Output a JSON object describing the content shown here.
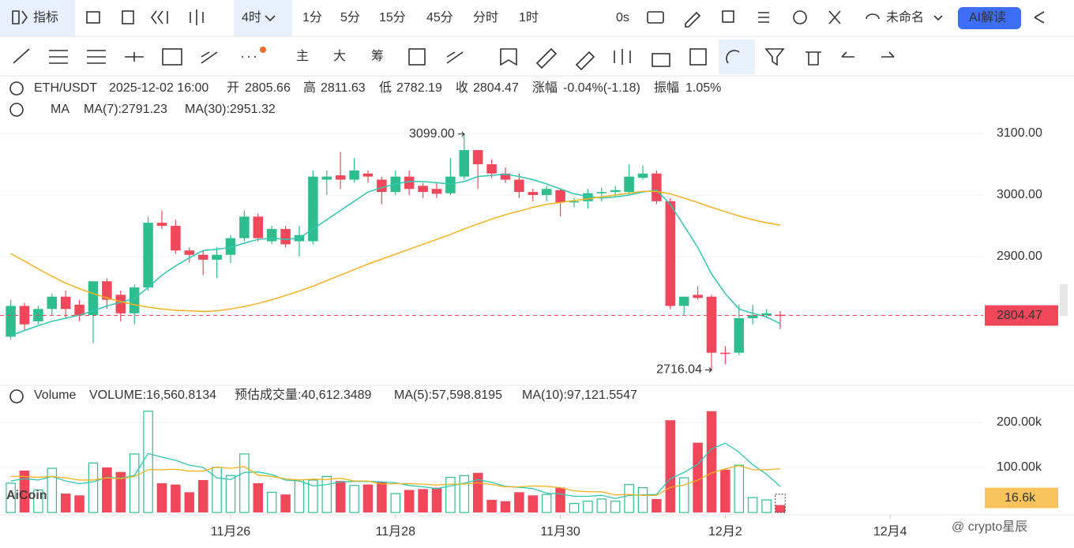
{
  "toolbar": {
    "top": [
      "指标",
      "4时",
      "1分",
      "5分",
      "15分",
      "45分",
      "分时",
      "1时",
      "0s",
      "未命名",
      "AI解读"
    ],
    "draw": [
      "主",
      "大",
      "筹"
    ]
  },
  "info": {
    "symbol": "ETH/USDT",
    "time": "2025-12-02 16:00",
    "open_label": "开",
    "open": "2805.66",
    "high_label": "高",
    "high": "2811.63",
    "low_label": "低",
    "low": "2782.19",
    "close_label": "收",
    "close": "2804.47",
    "change_label": "涨幅",
    "change": "-0.04%(-1.18)",
    "amp_label": "振幅",
    "amp": "1.05%",
    "ma_label": "MA",
    "ma7": "MA(7):2791.23",
    "ma30": "MA(30):2951.32"
  },
  "chart_data": [
    {
      "type": "candlestick",
      "up_color": "#2ebd8f",
      "down_color": "#f0485a",
      "open": [
        2770,
        2820,
        2795,
        2815,
        2835,
        2822,
        2805,
        2860,
        2838,
        2808,
        2850,
        2955,
        2950,
        2910,
        2903,
        2895,
        2903,
        2930,
        2965,
        2925,
        2945,
        2925,
        2925,
        3025,
        3032,
        3025,
        3035,
        3025,
        3005,
        3030,
        3015,
        3010,
        3003,
        3030,
        3073,
        3050,
        3035,
        3025,
        3005,
        3000,
        3008,
        2988,
        2990,
        3003,
        3005,
        3005,
        3028,
        3035,
        2990,
        2820,
        2838,
        2835,
        2744,
        2744,
        2800,
        2805,
        2805.66
      ],
      "high": [
        2830,
        2825,
        2820,
        2840,
        2845,
        2830,
        2860,
        2865,
        2845,
        2855,
        2965,
        2975,
        2960,
        2915,
        2910,
        2915,
        2935,
        2975,
        2970,
        2950,
        2950,
        2950,
        3040,
        3040,
        3070,
        3060,
        3040,
        3030,
        3040,
        3040,
        3020,
        3020,
        3060,
        3099,
        3073,
        3058,
        3045,
        3035,
        3010,
        3015,
        3010,
        2995,
        3010,
        3012,
        3015,
        3050,
        3048,
        3040,
        2995,
        2835,
        2852,
        2838,
        2755,
        2822,
        2822,
        2815,
        2811.63
      ],
      "low": [
        2765,
        2780,
        2790,
        2805,
        2800,
        2795,
        2760,
        2815,
        2795,
        2790,
        2845,
        2945,
        2905,
        2890,
        2870,
        2865,
        2890,
        2925,
        2925,
        2920,
        2915,
        2900,
        2920,
        3000,
        3010,
        3020,
        3020,
        2985,
        3000,
        3000,
        2995,
        2995,
        3000,
        3025,
        3010,
        3028,
        3020,
        2995,
        2990,
        2990,
        2965,
        2980,
        2978,
        2990,
        2998,
        3000,
        3025,
        2985,
        2815,
        2805,
        2830,
        2716.04,
        2725,
        2740,
        2790,
        2800,
        2782.19
      ],
      "close": [
        2820,
        2790,
        2815,
        2835,
        2815,
        2805,
        2860,
        2830,
        2808,
        2850,
        2955,
        2950,
        2910,
        2903,
        2895,
        2903,
        2930,
        2965,
        2930,
        2945,
        2920,
        2935,
        3030,
        3030,
        3025,
        3040,
        3030,
        3005,
        3030,
        3010,
        3005,
        3002,
        3030,
        3073,
        3050,
        3035,
        3025,
        3005,
        3000,
        3010,
        2988,
        2990,
        3003,
        3005,
        3008,
        3030,
        3035,
        2990,
        2820,
        2835,
        2833,
        2744,
        2742,
        2800,
        2805,
        2808,
        2804.47
      ],
      "lines": [
        {
          "color": "#2ec7b0",
          "values": [
            2772,
            2780,
            2788,
            2795,
            2800,
            2805,
            2812,
            2820,
            2826,
            2832,
            2850,
            2870,
            2885,
            2898,
            2910,
            2912,
            2915,
            2922,
            2928,
            2930,
            2928,
            2930,
            2945,
            2960,
            2975,
            2990,
            3005,
            3012,
            3018,
            3022,
            3022,
            3020,
            3018,
            3022,
            3030,
            3032,
            3034,
            3030,
            3025,
            3018,
            3010,
            3002,
            2998,
            2995,
            2997,
            3000,
            3005,
            3008,
            2985,
            2950,
            2915,
            2872,
            2840,
            2815,
            2808,
            2802,
            2791.23
          ]
        },
        {
          "color": "#f5b11e",
          "values": [
            2905,
            2893,
            2880,
            2868,
            2857,
            2848,
            2840,
            2833,
            2827,
            2822,
            2818,
            2815,
            2813,
            2812,
            2811,
            2812,
            2815,
            2819,
            2824,
            2830,
            2837,
            2844,
            2852,
            2861,
            2870,
            2879,
            2888,
            2896,
            2904,
            2912,
            2920,
            2928,
            2936,
            2945,
            2953,
            2961,
            2968,
            2974,
            2980,
            2985,
            2988,
            2991,
            2994,
            2997,
            3000,
            3003,
            3006,
            3006,
            3002,
            2995,
            2988,
            2980,
            2973,
            2966,
            2960,
            2955,
            2951.32
          ]
        }
      ],
      "annotations": [
        {
          "label": "3099.00",
          "value": 3099
        },
        {
          "label": "2716.04",
          "value": 2716.04
        }
      ],
      "xlim": [
        -0.78,
        70.77
      ],
      "xticks": [
        {
          "value": 16,
          "label": "11月26"
        },
        {
          "value": 28,
          "label": "11月28"
        },
        {
          "value": 40,
          "label": "11月30"
        },
        {
          "value": 52,
          "label": "12月2"
        },
        {
          "value": 64,
          "label": "12月4"
        }
      ],
      "ylim": [
        2701.3,
        3124.4
      ],
      "yticks": [
        {
          "value": 2900,
          "label": "2900.00"
        },
        {
          "value": 3000,
          "label": "3000.00"
        },
        {
          "value": 3100,
          "label": "3100.00"
        }
      ]
    },
    {
      "type": "bar",
      "legend": [
        "Volume",
        "VOLUME:16,560.8134",
        "预估成交量:40,612.3489",
        "MA(5):57,598.8195",
        "MA(10):97,121.5547"
      ],
      "values": [
        65000,
        93000,
        50000,
        98000,
        42000,
        38000,
        110000,
        100000,
        90000,
        130000,
        225000,
        65000,
        62000,
        45000,
        72000,
        100000,
        82000,
        130000,
        65000,
        45000,
        40000,
        72000,
        72000,
        80000,
        70000,
        60000,
        62000,
        68000,
        42000,
        50000,
        52000,
        55000,
        78000,
        82000,
        88000,
        28000,
        25000,
        45000,
        38000,
        40000,
        55000,
        20000,
        25000,
        30000,
        25000,
        62000,
        55000,
        30000,
        205000,
        77000,
        155000,
        225000,
        95000,
        105000,
        33000,
        28000,
        16560.8134
      ],
      "value_labels": [
        null,
        null,
        null,
        null,
        null,
        null,
        null,
        null,
        null,
        null,
        null,
        null,
        null,
        null,
        null,
        null,
        null,
        null,
        null,
        null,
        null,
        null,
        null,
        null,
        null,
        null,
        null,
        null,
        null,
        null,
        null,
        null,
        null,
        null,
        null,
        null,
        null,
        null,
        null,
        null,
        null,
        null,
        null,
        null,
        null,
        null,
        null,
        null,
        null,
        null,
        null,
        null,
        null,
        null,
        null,
        null,
        "16.6k"
      ],
      "estimate": 40612.3489,
      "lines": [
        {
          "color": "#2ec7b0",
          "values": [
            70000,
            75000,
            72000,
            80000,
            70000,
            64000,
            68000,
            78000,
            76000,
            82000,
            131000,
            123000,
            116000,
            105000,
            100000,
            77000,
            73000,
            89000,
            90000,
            84000,
            72000,
            70000,
            59000,
            62000,
            68000,
            69000,
            69000,
            68000,
            66000,
            60000,
            57000,
            53000,
            59000,
            65000,
            73000,
            67000,
            58000,
            56000,
            53000,
            43000,
            41000,
            36000,
            36000,
            38000,
            31000,
            38000,
            39000,
            40000,
            75000,
            89000,
            107000,
            141000,
            154000,
            134000,
            106000,
            85000,
            57598.8195
          ]
        },
        {
          "color": "#f5b11e",
          "values": [
            80000,
            80000,
            78000,
            80000,
            77000,
            72000,
            72000,
            77000,
            75000,
            80000,
            95000,
            95000,
            96000,
            92000,
            92000,
            101000,
            98000,
            102000,
            83000,
            80000,
            75000,
            72000,
            74000,
            73000,
            76000,
            70000,
            70000,
            63000,
            64000,
            64000,
            63000,
            61000,
            63000,
            63000,
            66000,
            62000,
            57000,
            57000,
            59000,
            58000,
            55000,
            48000,
            46000,
            46000,
            39000,
            40000,
            38000,
            38000,
            56000,
            61000,
            72000,
            88000,
            97000,
            104000,
            95000,
            95000,
            97121.5547
          ]
        }
      ],
      "ylim": [
        0,
        226300
      ],
      "yticks": [
        {
          "value": 100000,
          "label": "100.00k"
        },
        {
          "value": 200000,
          "label": "200.00k"
        }
      ]
    }
  ],
  "watermark": [
    "AiCoin",
    "@ crypto星辰"
  ]
}
